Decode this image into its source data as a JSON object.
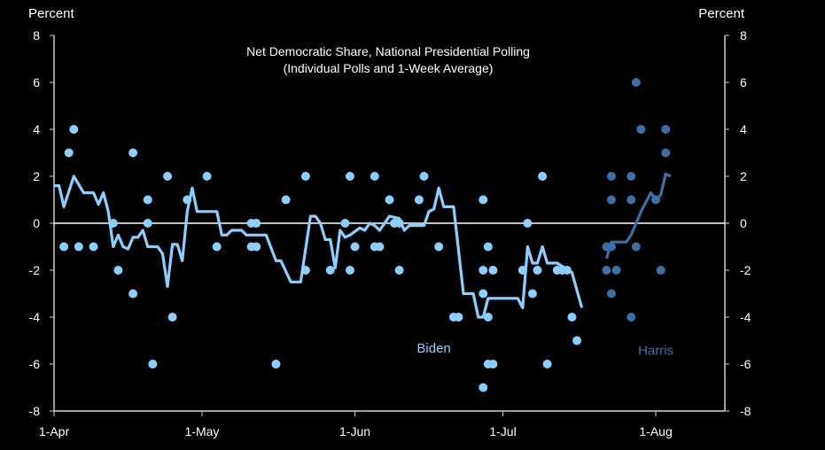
{
  "chart_data": {
    "type": "scatter+line",
    "title": "Net Democratic Share, National Presidential Polling",
    "subtitle": "(Individual Polls and 1-Week Average)",
    "ylabel_left": "Percent",
    "ylabel_right": "Percent",
    "xlabel": "",
    "ylim": [
      -8,
      8
    ],
    "yticks": [
      -8,
      -6,
      -4,
      -2,
      0,
      2,
      4,
      6,
      8
    ],
    "xlim": [
      "2024-04-01",
      "2024-08-15"
    ],
    "xticks": [
      {
        "date": "2024-04-01",
        "label": "1-Apr"
      },
      {
        "date": "2024-05-01",
        "label": "1-May"
      },
      {
        "date": "2024-06-01",
        "label": "1-Jun"
      },
      {
        "date": "2024-07-01",
        "label": "1-Jul"
      },
      {
        "date": "2024-08-01",
        "label": "1-Aug"
      }
    ],
    "grid": false,
    "zero_line": true,
    "series": [
      {
        "name": "Biden",
        "color": "#8ccfff",
        "polls": [
          [
            "2024-04-03",
            -1
          ],
          [
            "2024-04-04",
            3
          ],
          [
            "2024-04-05",
            4
          ],
          [
            "2024-04-06",
            -1
          ],
          [
            "2024-04-09",
            -1
          ],
          [
            "2024-04-13",
            0
          ],
          [
            "2024-04-14",
            -2
          ],
          [
            "2024-04-17",
            -3
          ],
          [
            "2024-04-17",
            3
          ],
          [
            "2024-04-20",
            1
          ],
          [
            "2024-04-20",
            0
          ],
          [
            "2024-04-21",
            -6
          ],
          [
            "2024-04-24",
            2
          ],
          [
            "2024-04-25",
            -4
          ],
          [
            "2024-04-28",
            1
          ],
          [
            "2024-05-02",
            2
          ],
          [
            "2024-05-04",
            -1
          ],
          [
            "2024-05-11",
            0
          ],
          [
            "2024-05-12",
            0
          ],
          [
            "2024-05-11",
            -1
          ],
          [
            "2024-05-12",
            -1
          ],
          [
            "2024-05-16",
            -6
          ],
          [
            "2024-05-18",
            1
          ],
          [
            "2024-05-22",
            2
          ],
          [
            "2024-05-22",
            -2
          ],
          [
            "2024-05-27",
            -2
          ],
          [
            "2024-05-30",
            0
          ],
          [
            "2024-05-31",
            2
          ],
          [
            "2024-05-31",
            -2
          ],
          [
            "2024-06-01",
            -1
          ],
          [
            "2024-06-05",
            2
          ],
          [
            "2024-06-05",
            -1
          ],
          [
            "2024-06-06",
            -1
          ],
          [
            "2024-06-08",
            1
          ],
          [
            "2024-06-09",
            0
          ],
          [
            "2024-06-10",
            0
          ],
          [
            "2024-06-10",
            -2
          ],
          [
            "2024-06-14",
            1
          ],
          [
            "2024-06-15",
            2
          ],
          [
            "2024-06-18",
            -1
          ],
          [
            "2024-06-21",
            -4
          ],
          [
            "2024-06-22",
            -4
          ],
          [
            "2024-06-27",
            1
          ],
          [
            "2024-06-28",
            -1
          ],
          [
            "2024-06-27",
            -2
          ],
          [
            "2024-06-29",
            -2
          ],
          [
            "2024-06-27",
            -3
          ],
          [
            "2024-06-28",
            -4
          ],
          [
            "2024-06-28",
            -6
          ],
          [
            "2024-06-29",
            -6
          ],
          [
            "2024-06-27",
            -7
          ],
          [
            "2024-07-06",
            0
          ],
          [
            "2024-07-07",
            -3
          ],
          [
            "2024-07-09",
            2
          ],
          [
            "2024-07-05",
            -2
          ],
          [
            "2024-07-08",
            -2
          ],
          [
            "2024-07-10",
            -6
          ],
          [
            "2024-07-12",
            -2
          ],
          [
            "2024-07-13",
            -2
          ],
          [
            "2024-07-14",
            -2
          ],
          [
            "2024-07-15",
            -4
          ],
          [
            "2024-07-16",
            -5
          ]
        ],
        "average": [
          [
            "2024-04-01",
            1.6
          ],
          [
            "2024-04-02",
            1.6
          ],
          [
            "2024-04-03",
            0.7
          ],
          [
            "2024-04-05",
            2.0
          ],
          [
            "2024-04-07",
            1.3
          ],
          [
            "2024-04-09",
            1.3
          ],
          [
            "2024-04-10",
            0.8
          ],
          [
            "2024-04-11",
            1.3
          ],
          [
            "2024-04-12",
            0.5
          ],
          [
            "2024-04-13",
            -1.0
          ],
          [
            "2024-04-14",
            -0.5
          ],
          [
            "2024-04-15",
            -1.0
          ],
          [
            "2024-04-16",
            -1.1
          ],
          [
            "2024-04-17",
            -0.6
          ],
          [
            "2024-04-18",
            -0.6
          ],
          [
            "2024-04-19",
            -0.3
          ],
          [
            "2024-04-20",
            -1.0
          ],
          [
            "2024-04-22",
            -1.0
          ],
          [
            "2024-04-23",
            -1.3
          ],
          [
            "2024-04-24",
            -2.7
          ],
          [
            "2024-04-25",
            -0.9
          ],
          [
            "2024-04-26",
            -0.9
          ],
          [
            "2024-04-27",
            -1.6
          ],
          [
            "2024-04-28",
            0.5
          ],
          [
            "2024-04-29",
            1.5
          ],
          [
            "2024-04-30",
            0.5
          ],
          [
            "2024-05-03",
            0.5
          ],
          [
            "2024-05-04",
            0.5
          ],
          [
            "2024-05-05",
            -0.5
          ],
          [
            "2024-05-06",
            -0.5
          ],
          [
            "2024-05-07",
            -0.3
          ],
          [
            "2024-05-09",
            -0.3
          ],
          [
            "2024-05-10",
            -0.5
          ],
          [
            "2024-05-14",
            -0.5
          ],
          [
            "2024-05-16",
            -1.6
          ],
          [
            "2024-05-17",
            -1.6
          ],
          [
            "2024-05-19",
            -2.5
          ],
          [
            "2024-05-21",
            -2.5
          ],
          [
            "2024-05-23",
            0.3
          ],
          [
            "2024-05-24",
            0.3
          ],
          [
            "2024-05-25",
            0.0
          ],
          [
            "2024-05-26",
            -0.7
          ],
          [
            "2024-05-27",
            -0.7
          ],
          [
            "2024-05-28",
            -1.9
          ],
          [
            "2024-05-29",
            -0.3
          ],
          [
            "2024-05-30",
            -0.6
          ],
          [
            "2024-05-31",
            -0.5
          ],
          [
            "2024-06-02",
            -0.2
          ],
          [
            "2024-06-03",
            -0.3
          ],
          [
            "2024-06-04",
            0.0
          ],
          [
            "2024-06-05",
            -0.1
          ],
          [
            "2024-06-06",
            -0.3
          ],
          [
            "2024-06-08",
            0.3
          ],
          [
            "2024-06-10",
            0.2
          ],
          [
            "2024-06-11",
            -0.3
          ],
          [
            "2024-06-12",
            -0.1
          ],
          [
            "2024-06-15",
            -0.1
          ],
          [
            "2024-06-16",
            0.5
          ],
          [
            "2024-06-17",
            0.6
          ],
          [
            "2024-06-18",
            1.5
          ],
          [
            "2024-06-19",
            0.7
          ],
          [
            "2024-06-21",
            0.7
          ],
          [
            "2024-06-23",
            -3.0
          ],
          [
            "2024-06-25",
            -3.0
          ],
          [
            "2024-06-26",
            -4.0
          ],
          [
            "2024-06-27",
            -4.0
          ],
          [
            "2024-06-28",
            -3.2
          ],
          [
            "2024-07-04",
            -3.2
          ],
          [
            "2024-07-05",
            -3.6
          ],
          [
            "2024-07-06",
            -1.0
          ],
          [
            "2024-07-07",
            -1.7
          ],
          [
            "2024-07-08",
            -1.7
          ],
          [
            "2024-07-09",
            -1.0
          ],
          [
            "2024-07-10",
            -1.7
          ],
          [
            "2024-07-12",
            -1.7
          ],
          [
            "2024-07-15",
            -2.1
          ],
          [
            "2024-07-17",
            -3.6
          ]
        ],
        "label_position": [
          "2024-06-17",
          -5.5
        ]
      },
      {
        "name": "Harris",
        "color": "#3f6ea6",
        "polls": [
          [
            "2024-07-22",
            -1
          ],
          [
            "2024-07-23",
            2
          ],
          [
            "2024-07-23",
            1
          ],
          [
            "2024-07-22",
            -2
          ],
          [
            "2024-07-23",
            -1
          ],
          [
            "2024-07-24",
            -2
          ],
          [
            "2024-07-23",
            -3
          ],
          [
            "2024-07-27",
            2
          ],
          [
            "2024-07-27",
            1
          ],
          [
            "2024-07-28",
            -1
          ],
          [
            "2024-07-27",
            -4
          ],
          [
            "2024-07-28",
            6
          ],
          [
            "2024-07-29",
            4
          ],
          [
            "2024-08-01",
            1
          ],
          [
            "2024-08-02",
            -2
          ],
          [
            "2024-08-03",
            4
          ],
          [
            "2024-08-03",
            3
          ]
        ],
        "average": [
          [
            "2024-07-22",
            -1.5
          ],
          [
            "2024-07-23",
            -0.8
          ],
          [
            "2024-07-26",
            -0.8
          ],
          [
            "2024-07-27",
            -0.5
          ],
          [
            "2024-07-29",
            0.5
          ],
          [
            "2024-07-31",
            1.3
          ],
          [
            "2024-08-01",
            1.0
          ],
          [
            "2024-08-02",
            1.2
          ],
          [
            "2024-08-03",
            2.1
          ],
          [
            "2024-08-04",
            2.0
          ]
        ],
        "label_position": [
          "2024-08-01",
          -5.6
        ]
      }
    ]
  }
}
